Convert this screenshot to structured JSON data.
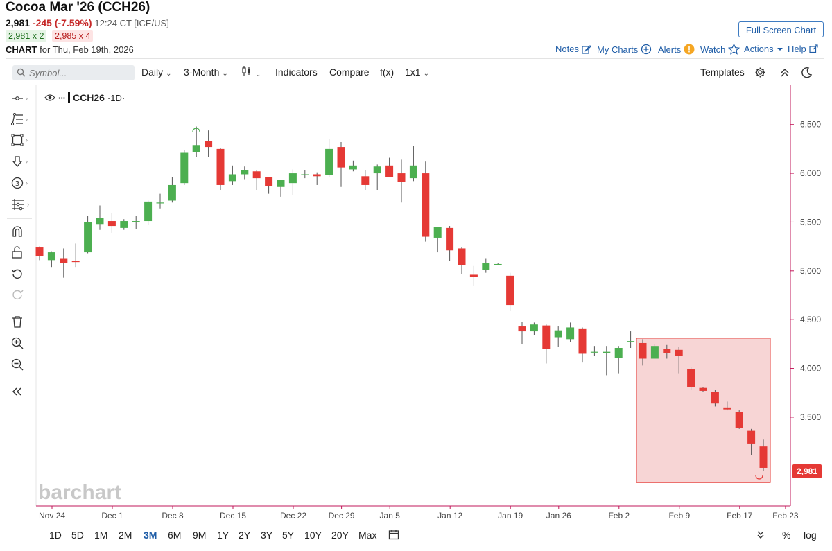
{
  "header": {
    "title": "Cocoa Mar '26 (CCH26)",
    "last_price": "2,981",
    "change": "-245 (-7.59%)",
    "meta": "12:24 CT [ICE/US]",
    "bid": "2,981 x 2",
    "ask": "2,985 x 4",
    "chart_label": "CHART",
    "date_text": "for Thu, Feb 19th, 2026",
    "fullscreen_label": "Full Screen Chart"
  },
  "header_nav": {
    "notes": "Notes",
    "my_charts": "My Charts",
    "alerts": "Alerts",
    "watch": "Watch",
    "actions": "Actions",
    "help": "Help"
  },
  "toolbar": {
    "symbol_placeholder": "Symbol...",
    "interval": "Daily",
    "range": "3-Month",
    "indicators": "Indicators",
    "compare": "Compare",
    "fx": "f(x)",
    "layout": "1x1",
    "templates": "Templates"
  },
  "legend": {
    "symbol": "CCH26",
    "interval": "·1D·"
  },
  "watermark": "barchart",
  "range_buttons": [
    "1D",
    "5D",
    "1M",
    "2M",
    "3M",
    "6M",
    "9M",
    "1Y",
    "2Y",
    "3Y",
    "5Y",
    "10Y",
    "20Y",
    "Max"
  ],
  "active_range": "3M",
  "scale_buttons": {
    "percent": "%",
    "log": "log"
  },
  "colors": {
    "up": "#4caf50",
    "down": "#e53935",
    "accent": "#1f5da7",
    "axis": "#c2185b",
    "highlight": "#f4c7c7"
  },
  "chart_data": {
    "type": "candlestick",
    "symbol": "CCH26",
    "last_price_label": "2,981",
    "y_ticks": [
      "6,500",
      "6,000",
      "5,500",
      "5,000",
      "4,500",
      "4,000",
      "3,500"
    ],
    "y_tick_values": [
      6500,
      6000,
      5500,
      5000,
      4500,
      4000,
      3500
    ],
    "ylim": [
      2590,
      6910
    ],
    "x_ticks": [
      {
        "label": "Nov 24",
        "index": 0
      },
      {
        "label": "Dec 1",
        "index": 5
      },
      {
        "label": "Dec 8",
        "index": 10
      },
      {
        "label": "Dec 15",
        "index": 15
      },
      {
        "label": "Dec 22",
        "index": 20
      },
      {
        "label": "Dec 29",
        "index": 24
      },
      {
        "label": "Jan 5",
        "index": 28
      },
      {
        "label": "Jan 12",
        "index": 33
      },
      {
        "label": "Jan 19",
        "index": 38
      },
      {
        "label": "Jan 26",
        "index": 42
      },
      {
        "label": "Feb 2",
        "index": 47
      },
      {
        "label": "Feb 9",
        "index": 52
      },
      {
        "label": "Feb 17",
        "index": 57
      },
      {
        "label": "Feb 23",
        "index": 60.8
      }
    ],
    "candles": [
      {
        "o": 5240,
        "h": 5250,
        "l": 5110,
        "c": 5150
      },
      {
        "o": 5110,
        "h": 5200,
        "l": 5040,
        "c": 5190
      },
      {
        "o": 5130,
        "h": 5230,
        "l": 4930,
        "c": 5080
      },
      {
        "o": 5100,
        "h": 5280,
        "l": 5040,
        "c": 5090
      },
      {
        "o": 5190,
        "h": 5560,
        "l": 5180,
        "c": 5500
      },
      {
        "o": 5480,
        "h": 5670,
        "l": 5420,
        "c": 5540
      },
      {
        "o": 5510,
        "h": 5590,
        "l": 5390,
        "c": 5460
      },
      {
        "o": 5440,
        "h": 5530,
        "l": 5420,
        "c": 5510
      },
      {
        "o": 5500,
        "h": 5560,
        "l": 5430,
        "c": 5510
      },
      {
        "o": 5510,
        "h": 5720,
        "l": 5470,
        "c": 5710
      },
      {
        "o": 5700,
        "h": 5790,
        "l": 5640,
        "c": 5700
      },
      {
        "o": 5720,
        "h": 5960,
        "l": 5700,
        "c": 5880
      },
      {
        "o": 5900,
        "h": 6240,
        "l": 5880,
        "c": 6210
      },
      {
        "o": 6220,
        "h": 6480,
        "l": 6170,
        "c": 6290
      },
      {
        "o": 6330,
        "h": 6440,
        "l": 6170,
        "c": 6270
      },
      {
        "o": 6250,
        "h": 6260,
        "l": 5830,
        "c": 5880
      },
      {
        "o": 5920,
        "h": 6080,
        "l": 5880,
        "c": 5990
      },
      {
        "o": 5990,
        "h": 6070,
        "l": 5940,
        "c": 6030
      },
      {
        "o": 6020,
        "h": 6030,
        "l": 5830,
        "c": 5950
      },
      {
        "o": 5960,
        "h": 5960,
        "l": 5790,
        "c": 5870
      },
      {
        "o": 5860,
        "h": 5930,
        "l": 5760,
        "c": 5930
      },
      {
        "o": 5900,
        "h": 6040,
        "l": 5780,
        "c": 6000
      },
      {
        "o": 5990,
        "h": 6030,
        "l": 5950,
        "c": 5990
      },
      {
        "o": 5990,
        "h": 6010,
        "l": 5880,
        "c": 5970
      },
      {
        "o": 5980,
        "h": 6350,
        "l": 5960,
        "c": 6250
      },
      {
        "o": 6270,
        "h": 6320,
        "l": 5860,
        "c": 6060
      },
      {
        "o": 6040,
        "h": 6130,
        "l": 6020,
        "c": 6080
      },
      {
        "o": 5970,
        "h": 6030,
        "l": 5830,
        "c": 5880
      },
      {
        "o": 6000,
        "h": 6090,
        "l": 5830,
        "c": 6070
      },
      {
        "o": 6080,
        "h": 6160,
        "l": 5990,
        "c": 5960
      },
      {
        "o": 6000,
        "h": 6140,
        "l": 5700,
        "c": 5910
      },
      {
        "o": 5950,
        "h": 6280,
        "l": 5920,
        "c": 6080
      },
      {
        "o": 6000,
        "h": 6120,
        "l": 5300,
        "c": 5350
      },
      {
        "o": 5340,
        "h": 5450,
        "l": 5190,
        "c": 5450
      },
      {
        "o": 5440,
        "h": 5460,
        "l": 5100,
        "c": 5210
      },
      {
        "o": 5230,
        "h": 5240,
        "l": 4970,
        "c": 5060
      },
      {
        "o": 4960,
        "h": 5050,
        "l": 4850,
        "c": 4940
      },
      {
        "o": 5010,
        "h": 5130,
        "l": 4980,
        "c": 5080
      },
      {
        "o": 5070,
        "h": 5080,
        "l": 5060,
        "c": 5070
      },
      {
        "o": 4950,
        "h": 4980,
        "l": 4590,
        "c": 4650
      },
      {
        "o": 4430,
        "h": 4480,
        "l": 4250,
        "c": 4380
      },
      {
        "o": 4380,
        "h": 4470,
        "l": 4340,
        "c": 4450
      },
      {
        "o": 4440,
        "h": 4450,
        "l": 4050,
        "c": 4200
      },
      {
        "o": 4320,
        "h": 4430,
        "l": 4220,
        "c": 4390
      },
      {
        "o": 4300,
        "h": 4470,
        "l": 4270,
        "c": 4420
      },
      {
        "o": 4410,
        "h": 4420,
        "l": 4060,
        "c": 4150
      },
      {
        "o": 4170,
        "h": 4230,
        "l": 4130,
        "c": 4170
      },
      {
        "o": 4160,
        "h": 4230,
        "l": 3930,
        "c": 4170
      },
      {
        "o": 4110,
        "h": 4230,
        "l": 3950,
        "c": 4210
      },
      {
        "o": 4280,
        "h": 4380,
        "l": 4210,
        "c": 4280
      },
      {
        "o": 4260,
        "h": 4300,
        "l": 4030,
        "c": 4100
      },
      {
        "o": 4100,
        "h": 4250,
        "l": 4100,
        "c": 4230
      },
      {
        "o": 4200,
        "h": 4240,
        "l": 4100,
        "c": 4160
      },
      {
        "o": 4190,
        "h": 4220,
        "l": 3950,
        "c": 4130
      },
      {
        "o": 3990,
        "h": 4010,
        "l": 3780,
        "c": 3810
      },
      {
        "o": 3800,
        "h": 3810,
        "l": 3760,
        "c": 3770
      },
      {
        "o": 3760,
        "h": 3780,
        "l": 3610,
        "c": 3640
      },
      {
        "o": 3600,
        "h": 3660,
        "l": 3570,
        "c": 3580
      },
      {
        "o": 3550,
        "h": 3570,
        "l": 3380,
        "c": 3390
      },
      {
        "o": 3360,
        "h": 3380,
        "l": 3110,
        "c": 3230
      },
      {
        "o": 3200,
        "h": 3270,
        "l": 2950,
        "c": 2981
      }
    ],
    "highlight_box": {
      "start_index": 50,
      "end_index": 60,
      "top": 4310,
      "bottom": 2830
    }
  }
}
